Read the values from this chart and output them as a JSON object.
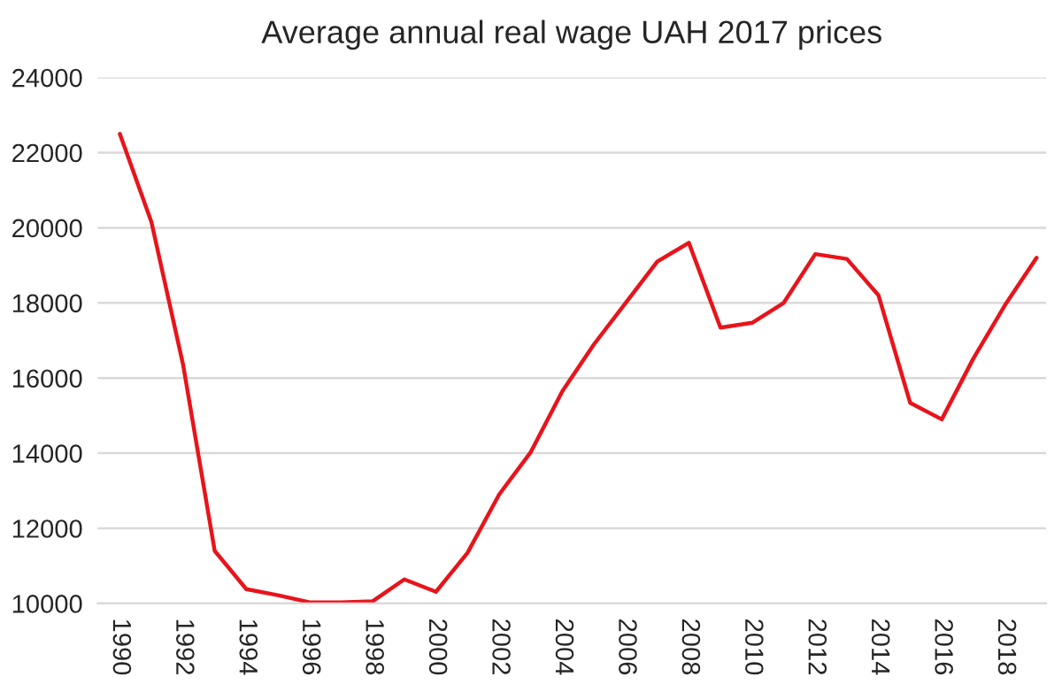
{
  "chart_data": {
    "type": "line",
    "title": "Average annual real wage UAH 2017 prices",
    "x": [
      1990,
      1991,
      1992,
      1993,
      1994,
      1995,
      1996,
      1997,
      1998,
      1999,
      2000,
      2001,
      2002,
      2003,
      2004,
      2005,
      2006,
      2007,
      2008,
      2009,
      2010,
      2011,
      2012,
      2013,
      2014,
      2015,
      2016,
      2017,
      2018,
      2019
    ],
    "series": [
      {
        "color": "#e8141b",
        "values": [
          22500,
          20150,
          16360,
          11400,
          10380,
          10220,
          10030,
          10030,
          10060,
          10640,
          10310,
          11350,
          12900,
          14030,
          15650,
          16900,
          18000,
          19100,
          19600,
          17340,
          17470,
          18000,
          19300,
          19170,
          18200,
          15340,
          14900,
          16520,
          17940,
          19200
        ]
      }
    ],
    "xlim": [
      1989.3,
      2019.3
    ],
    "xticks": [
      1990,
      1992,
      1994,
      1996,
      1998,
      2000,
      2002,
      2004,
      2006,
      2008,
      2010,
      2012,
      2014,
      2016,
      2018
    ],
    "ylim": [
      10000,
      24000
    ],
    "yticks": [
      10000,
      12000,
      14000,
      16000,
      18000,
      20000,
      22000,
      24000
    ],
    "grid": "y",
    "marker": "none",
    "line_style": "solid"
  }
}
